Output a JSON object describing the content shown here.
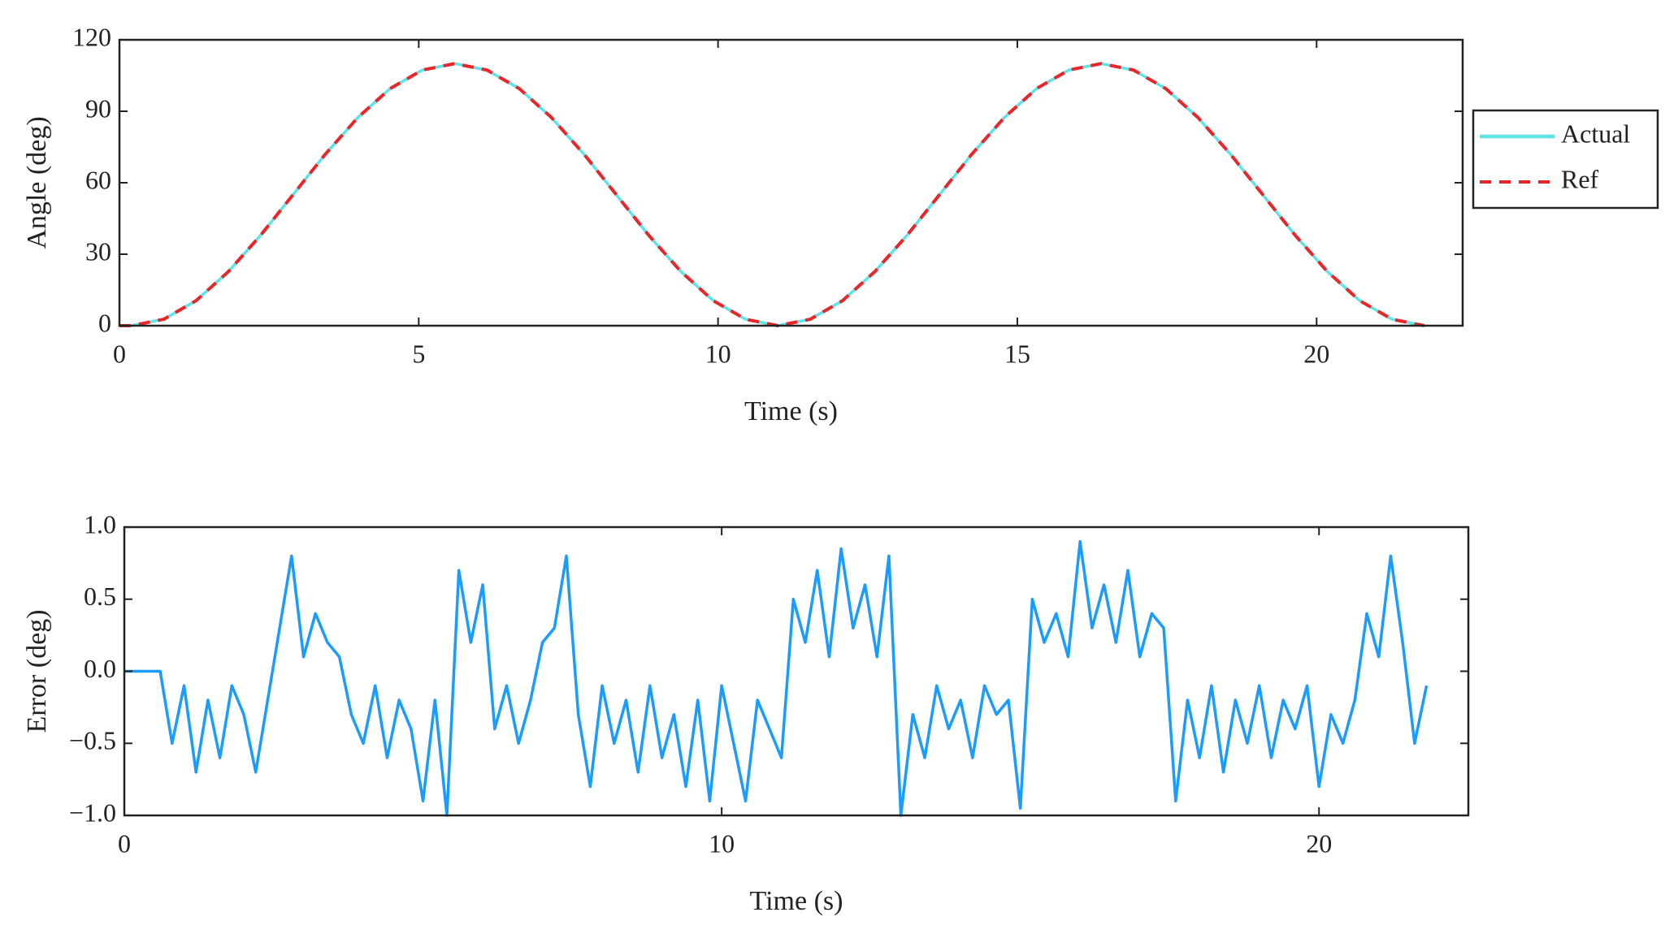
{
  "chart_data": [
    {
      "type": "line",
      "xlabel": "Time (s)",
      "ylabel": "Angle (deg)",
      "x": [
        0,
        0.2,
        0.74,
        1.28,
        1.82,
        2.36,
        2.9,
        3.44,
        3.98,
        4.52,
        5.06,
        5.6,
        6.14,
        6.68,
        7.22,
        7.76,
        8.3,
        8.84,
        9.38,
        9.92,
        10.46,
        11.0,
        11.54,
        12.08,
        12.62,
        13.16,
        13.7,
        14.24,
        14.78,
        15.32,
        15.86,
        16.4,
        16.94,
        17.48,
        18.02,
        18.56,
        19.1,
        19.64,
        20.18,
        20.72,
        21.26,
        21.8
      ],
      "series": [
        {
          "name": "Actual",
          "color": "#5fe3e6",
          "linestyle": "solid",
          "values": [
            null,
            0,
            2.7,
            10.5,
            22.7,
            38.0,
            55.0,
            72.0,
            87.3,
            99.5,
            107.3,
            110.0,
            107.3,
            99.5,
            87.3,
            72.0,
            55.0,
            38.0,
            22.7,
            10.5,
            2.7,
            0,
            2.7,
            10.5,
            22.7,
            38.0,
            55.0,
            72.0,
            87.3,
            99.5,
            107.3,
            110.0,
            107.3,
            99.5,
            87.3,
            72.0,
            55.0,
            38.0,
            22.7,
            10.5,
            2.7,
            0
          ]
        },
        {
          "name": "Ref",
          "color": "#e8262a",
          "linestyle": "dashed",
          "values": [
            0,
            0,
            2.7,
            10.5,
            22.7,
            38.0,
            55.0,
            72.0,
            87.3,
            99.5,
            107.3,
            110.0,
            107.3,
            99.5,
            87.3,
            72.0,
            55.0,
            38.0,
            22.7,
            10.5,
            2.7,
            0,
            2.7,
            10.5,
            22.7,
            38.0,
            55.0,
            72.0,
            87.3,
            99.5,
            107.3,
            110.0,
            107.3,
            99.5,
            87.3,
            72.0,
            55.0,
            38.0,
            22.7,
            10.5,
            2.7,
            0
          ]
        }
      ],
      "xlim": [
        0,
        22.44
      ],
      "xticks": [
        0,
        5,
        10,
        15,
        20
      ],
      "ylim": [
        0,
        120
      ],
      "yticks": [
        0,
        30,
        60,
        90,
        120
      ],
      "legend": "right"
    },
    {
      "type": "line",
      "xlabel": "Time (s)",
      "ylabel": "Error (deg)",
      "x": [
        0,
        0.2,
        0.4,
        0.6,
        0.8,
        1.0,
        1.2,
        1.4,
        1.6,
        1.8,
        2.0,
        2.2,
        2.4,
        2.6,
        2.8,
        3.0,
        3.2,
        3.4,
        3.6,
        3.8,
        4.0,
        4.2,
        4.4,
        4.6,
        4.8,
        5.0,
        5.2,
        5.4,
        5.6,
        5.8,
        6.0,
        6.2,
        6.4,
        6.6,
        6.8,
        7.0,
        7.2,
        7.4,
        7.6,
        7.8,
        8.0,
        8.2,
        8.4,
        8.6,
        8.8,
        9.0,
        9.2,
        9.4,
        9.6,
        9.8,
        10.0,
        10.2,
        10.4,
        10.6,
        10.8,
        11.0,
        11.2,
        11.4,
        11.6,
        11.8,
        12.0,
        12.2,
        12.4,
        12.6,
        12.8,
        13.0,
        13.2,
        13.4,
        13.6,
        13.8,
        14.0,
        14.2,
        14.4,
        14.6,
        14.8,
        15.0,
        15.2,
        15.4,
        15.6,
        15.8,
        16.0,
        16.2,
        16.4,
        16.6,
        16.8,
        17.0,
        17.2,
        17.4,
        17.6,
        17.8,
        18.0,
        18.2,
        18.4,
        18.6,
        18.8,
        19.0,
        19.2,
        19.4,
        19.6,
        19.8,
        20.0,
        20.2,
        20.4,
        20.6,
        20.8,
        21.0,
        21.2,
        21.4,
        21.6,
        21.8
      ],
      "color": "#1a9cff",
      "values": [
        0,
        0,
        0,
        0,
        -0.5,
        -0.1,
        -0.7,
        -0.2,
        -0.6,
        -0.1,
        -0.3,
        -0.7,
        -0.2,
        0.3,
        0.8,
        0.1,
        0.4,
        0.2,
        0.1,
        -0.3,
        -0.5,
        -0.1,
        -0.6,
        -0.2,
        -0.4,
        -0.9,
        -0.2,
        -1.0,
        0.7,
        0.2,
        0.6,
        -0.4,
        -0.1,
        -0.5,
        -0.2,
        0.2,
        0.3,
        0.8,
        -0.3,
        -0.8,
        -0.1,
        -0.5,
        -0.2,
        -0.7,
        -0.1,
        -0.6,
        -0.3,
        -0.8,
        -0.2,
        -0.9,
        -0.1,
        -0.5,
        -0.9,
        -0.2,
        -0.4,
        -0.6,
        0.5,
        0.2,
        0.7,
        0.1,
        0.85,
        0.3,
        0.6,
        0.1,
        0.8,
        -1.0,
        -0.3,
        -0.6,
        -0.1,
        -0.4,
        -0.2,
        -0.6,
        -0.1,
        -0.3,
        -0.2,
        -0.95,
        0.5,
        0.2,
        0.4,
        0.1,
        0.9,
        0.3,
        0.6,
        0.2,
        0.7,
        0.1,
        0.4,
        0.3,
        -0.9,
        -0.2,
        -0.6,
        -0.1,
        -0.7,
        -0.2,
        -0.5,
        -0.1,
        -0.6,
        -0.2,
        -0.4,
        -0.1,
        -0.8,
        -0.3,
        -0.5,
        -0.2,
        0.4,
        0.1,
        0.8,
        0.2,
        -0.5,
        -0.1
      ],
      "xlim": [
        0,
        22.5
      ],
      "xticks": [
        0,
        10,
        20
      ],
      "ylim": [
        -1,
        1
      ],
      "yticks": [
        {
          "value": -1,
          "label": "−1.0"
        },
        {
          "value": -0.5,
          "label": "−0.5"
        },
        {
          "value": 0,
          "label": "0.0"
        },
        0.5,
        {
          "value": 1,
          "label": "1.0"
        }
      ]
    }
  ]
}
